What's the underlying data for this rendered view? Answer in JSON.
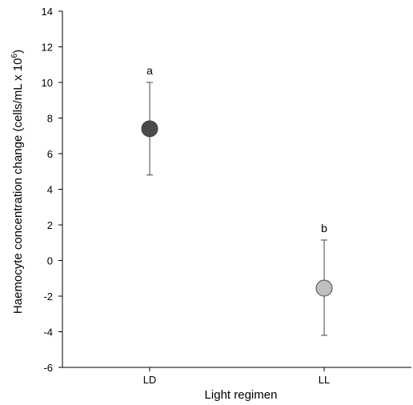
{
  "chart_data": {
    "type": "scatter",
    "xlabel": "Light regimen",
    "ylabel": "Haemocyte concentration change (cells/mL x 10",
    "ylabel_sup": "6",
    "ylabel_end": ")",
    "categories": [
      "LD",
      "LL"
    ],
    "values": [
      7.4,
      -1.55
    ],
    "error_upper": [
      10.0,
      1.15
    ],
    "error_lower": [
      4.8,
      -4.2
    ],
    "significance": [
      "a",
      "b"
    ],
    "point_colors": [
      "#4a4a4a",
      "#bfbfbf"
    ],
    "ylim": [
      -6,
      14
    ],
    "yticks": [
      -6,
      -4,
      -2,
      0,
      2,
      4,
      6,
      8,
      10,
      12,
      14
    ],
    "ytick_labels": [
      "-6",
      "-4",
      "-2",
      "0",
      "2",
      "4",
      "6",
      "8",
      "10",
      "12",
      "14"
    ],
    "grid": false,
    "legend": "none"
  }
}
